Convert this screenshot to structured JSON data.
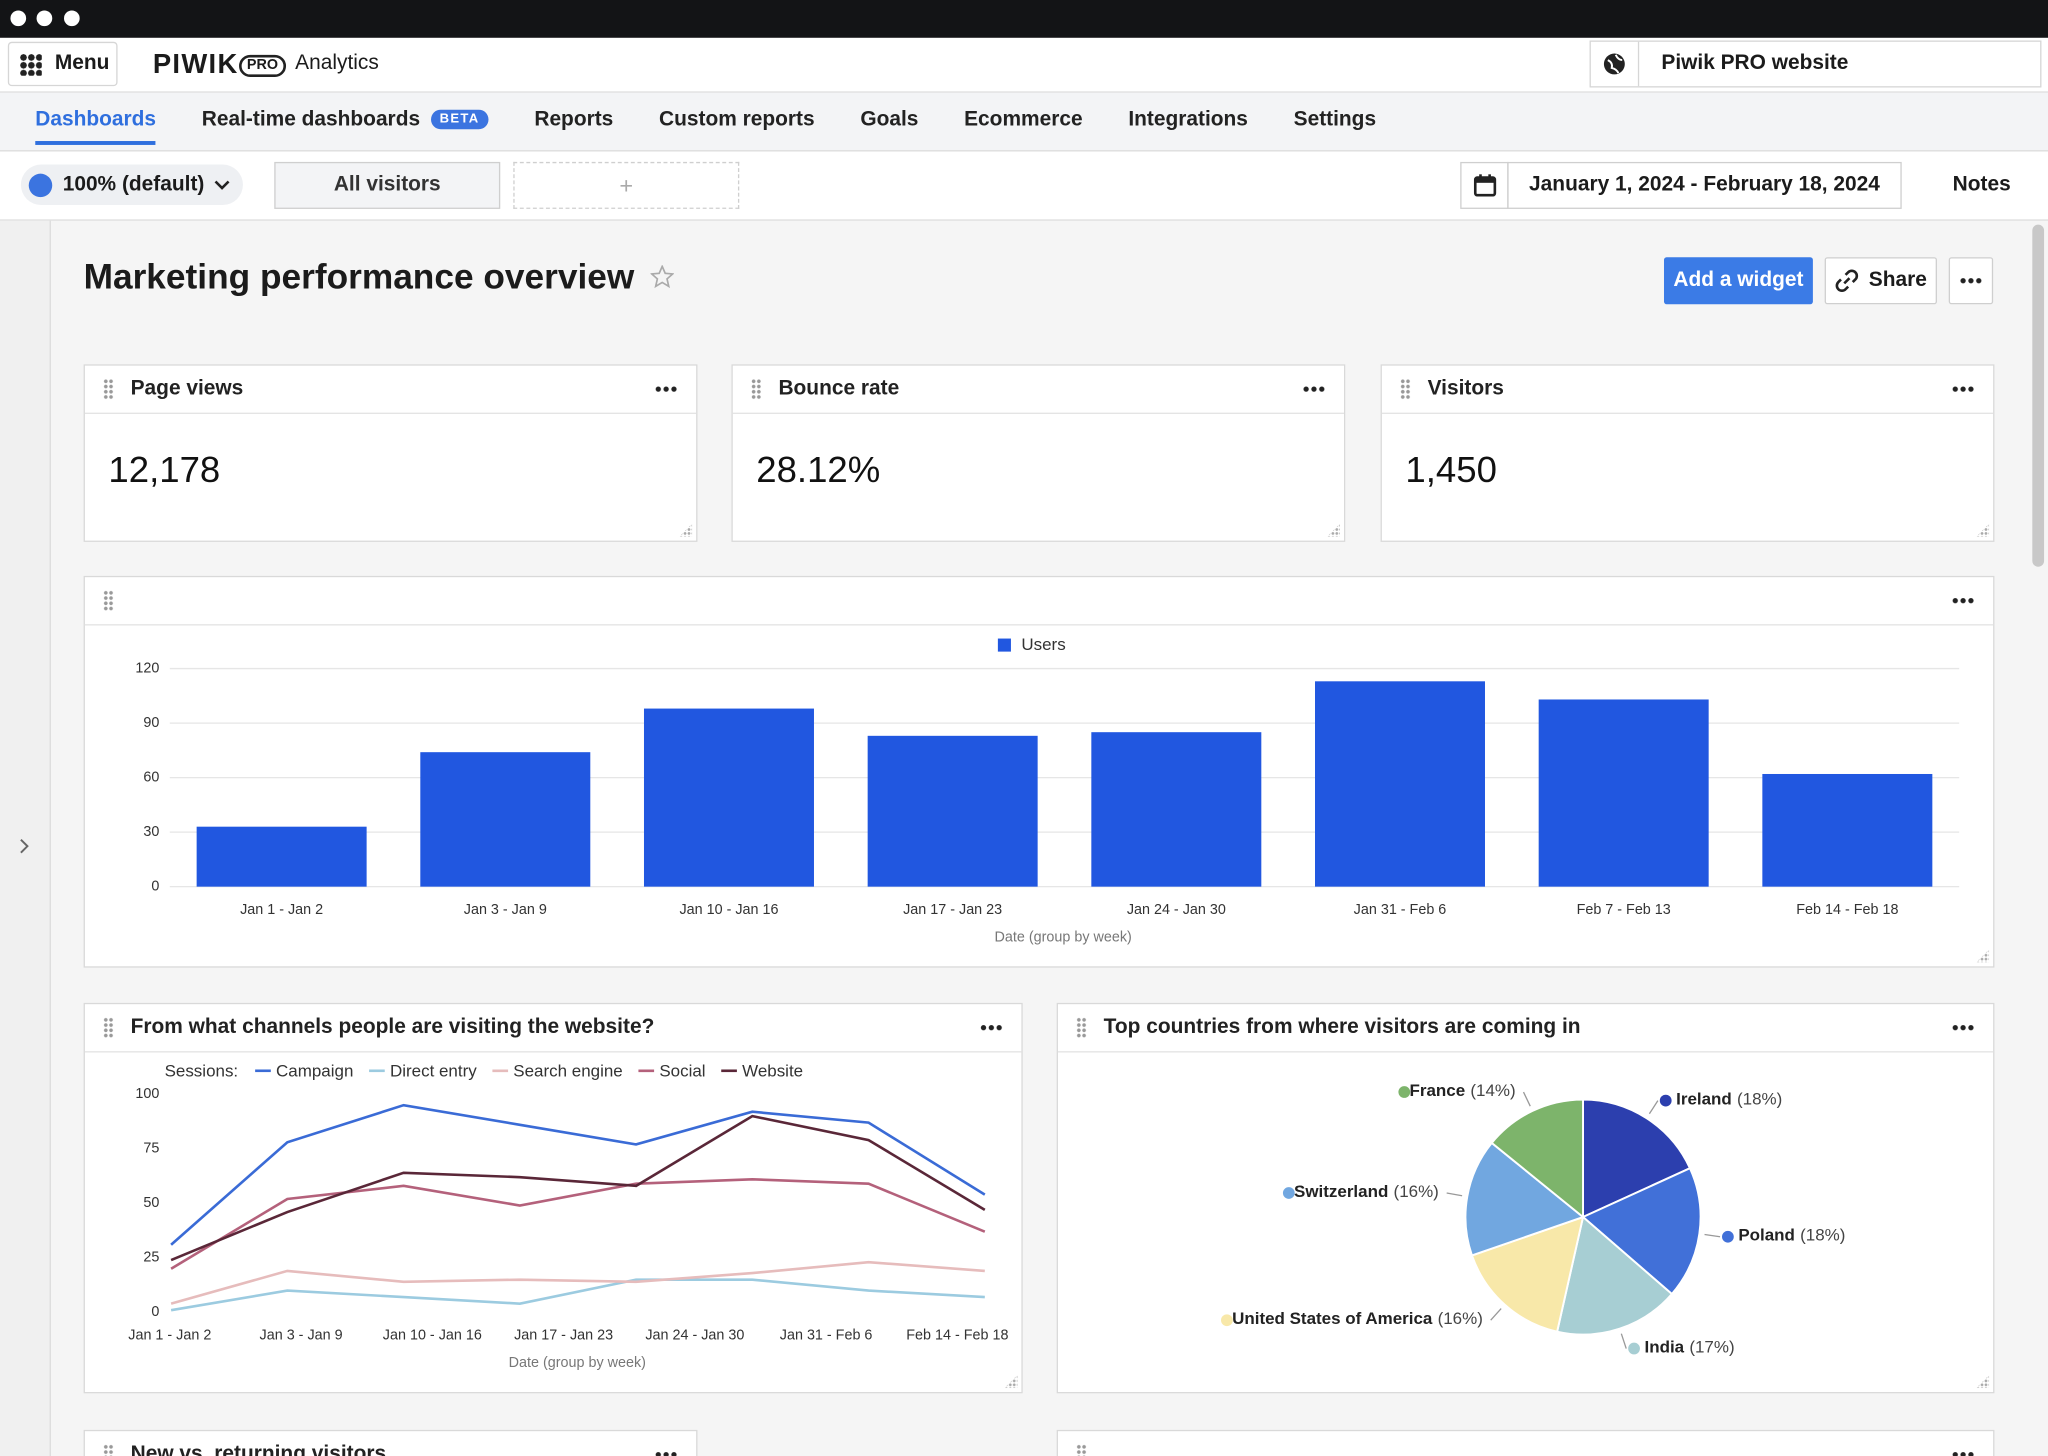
{
  "header": {
    "menu": "Menu",
    "logo": "PIWIK",
    "logo_badge": "PRO",
    "product": "Analytics",
    "site": "Piwik PRO website"
  },
  "nav": {
    "tabs": [
      "Dashboards",
      "Real-time dashboards",
      "Reports",
      "Custom reports",
      "Goals",
      "Ecommerce",
      "Integrations",
      "Settings"
    ],
    "badge": "BETA"
  },
  "toolbar": {
    "sampling": "100% (default)",
    "segment": "All visitors",
    "add_segment": "+",
    "date_range": "January 1, 2024 - February 18, 2024",
    "notes": "Notes"
  },
  "dashboard": {
    "title": "Marketing performance overview",
    "add_widget": "Add a widget",
    "share": "Share",
    "kpis": [
      {
        "title": "Page views",
        "value": "12,178"
      },
      {
        "title": "Bounce rate",
        "value": "28.12%"
      },
      {
        "title": "Visitors",
        "value": "1,450"
      }
    ],
    "widgets": [
      "From what channels people are visiting the website?",
      "Top countries from where visitors are coming in",
      "New vs. returning visitors"
    ]
  },
  "chart_data": [
    {
      "type": "bar",
      "categories": [
        "Jan 1 - Jan 2",
        "Jan 3 - Jan 9",
        "Jan 10 - Jan 16",
        "Jan 17 - Jan 23",
        "Jan 24 - Jan 30",
        "Jan 31 - Feb 6",
        "Feb 7 - Feb 13",
        "Feb 14 - Feb 18"
      ],
      "series": [
        {
          "name": "Users",
          "color": "#2157e0",
          "values": [
            33,
            74,
            98,
            83,
            85,
            113,
            103,
            62
          ]
        }
      ],
      "ylim": [
        0,
        120
      ],
      "yticks": [
        0,
        30,
        60,
        90,
        120
      ],
      "grid": true,
      "x_label": "Date (group by week)"
    },
    {
      "type": "line",
      "legend_title": "Sessions:",
      "categories": [
        "Jan 1 - Jan 2",
        "Jan 3 - Jan 9",
        "Jan 10 - Jan 16",
        "Jan 17 - Jan 23",
        "Jan 24 - Jan 30",
        "Jan 31 - Feb 6",
        null,
        "Feb 14 - Feb 18"
      ],
      "series": [
        {
          "name": "Campaign",
          "color": "#3a6bd6",
          "values": [
            31,
            78,
            95,
            86,
            77,
            92,
            87,
            54
          ]
        },
        {
          "name": "Direct entry",
          "color": "#9ccbe0",
          "values": [
            1,
            10,
            7,
            4,
            15,
            15,
            10,
            7
          ]
        },
        {
          "name": "Search engine",
          "color": "#e6bcbc",
          "values": [
            4,
            19,
            14,
            15,
            14,
            18,
            23,
            19
          ]
        },
        {
          "name": "Social",
          "color": "#b4617b",
          "values": [
            20,
            52,
            58,
            49,
            59,
            61,
            59,
            37
          ]
        },
        {
          "name": "Website",
          "color": "#5a2738",
          "values": [
            24,
            46,
            64,
            62,
            58,
            90,
            79,
            47
          ]
        }
      ],
      "ylim": [
        0,
        100
      ],
      "yticks": [
        0,
        25,
        50,
        75,
        100
      ],
      "grid": false,
      "x_label": "Date (group by week)"
    },
    {
      "type": "pie",
      "categories": [
        "Ireland",
        "Poland",
        "India",
        "United States of America",
        "Switzerland",
        "France"
      ],
      "values": [
        18,
        18,
        17,
        16,
        16,
        14
      ],
      "value_labels": [
        "(18%)",
        "(18%)",
        "(17%)",
        "(16%)",
        "(16%)",
        "(14%)"
      ],
      "colors": [
        "#2c3fae",
        "#4170d8",
        "#a7ced3",
        "#f8e8a9",
        "#71a7e0",
        "#7db46b"
      ]
    }
  ]
}
